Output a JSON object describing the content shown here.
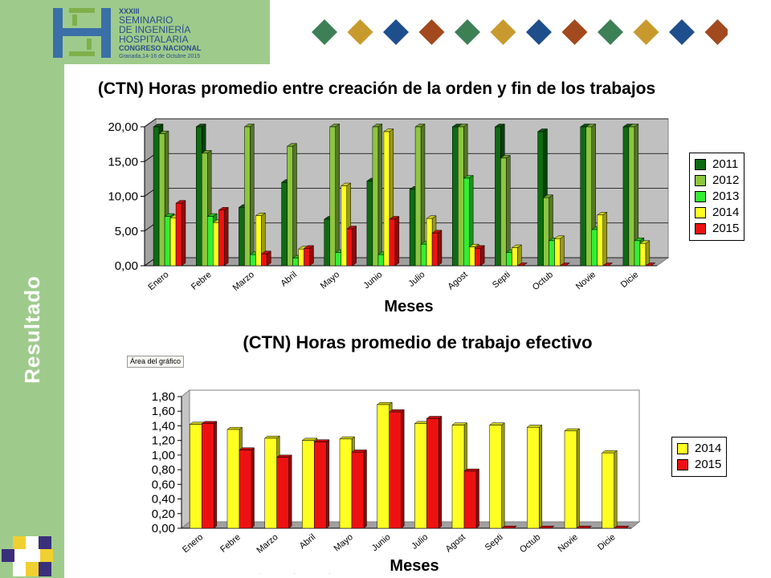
{
  "header": {
    "edition": "XXXIII",
    "line1": "SEMINARIO",
    "line2": "DE INGENIERÍA",
    "line3": "HOSPITALARIA",
    "line4": "CONGRESO NACIONAL",
    "line5": "Granada,14-16 de Octubre 2015",
    "logo_colors": [
      "#3a6fa8",
      "#7fb04a"
    ],
    "diamond_colors": [
      "#3e8056",
      "#c89a2e",
      "#1f4e8c",
      "#a24a1e",
      "#3e8056",
      "#c89a2e",
      "#1f4e8c",
      "#a24a1e",
      "#3e8056",
      "#c89a2e",
      "#1f4e8c",
      "#a24a1e"
    ]
  },
  "sidebar": {
    "label": "Resultado"
  },
  "tooltip": "Área del gráfico",
  "chart_data": [
    {
      "type": "bar",
      "title": "(CTN) Horas promedio entre creación de la orden y fin de los trabajos",
      "xlabel": "Meses",
      "ylabel": "",
      "ylim": [
        0,
        20
      ],
      "yticks": [
        "0,00",
        "5,00",
        "10,00",
        "15,00",
        "20,00"
      ],
      "ytick_values": [
        0,
        5,
        10,
        15,
        20
      ],
      "categories": [
        "Enero",
        "Febre",
        "Marzo",
        "Abril",
        "Mayo",
        "Junio",
        "Julio",
        "Agost",
        "Septi",
        "Octub",
        "Novie",
        "Dicie"
      ],
      "legend_position": "right",
      "grid": true,
      "series": [
        {
          "name": "2011",
          "color": "#0e6b12",
          "values": [
            20,
            20,
            8.4,
            12,
            6.7,
            12.2,
            11,
            20,
            20,
            19.3,
            20,
            20
          ]
        },
        {
          "name": "2012",
          "color": "#8cc63f",
          "values": [
            19,
            16.2,
            20,
            17.2,
            20,
            20,
            20,
            20,
            15.5,
            9.8,
            20,
            20
          ]
        },
        {
          "name": "2013",
          "color": "#33ee33",
          "values": [
            7.1,
            7.1,
            1.6,
            1.1,
            1.9,
            1.6,
            3.1,
            12.6,
            1.9,
            3.6,
            5.2,
            3.6
          ]
        },
        {
          "name": "2014",
          "color": "#ffff22",
          "values": [
            6.9,
            6.2,
            7.2,
            2.4,
            11.5,
            19.3,
            6.8,
            2.7,
            2.6,
            3.9,
            7.3,
            3.2
          ]
        },
        {
          "name": "2015",
          "color": "#ee1111",
          "values": [
            9,
            8,
            1.7,
            2.5,
            5.3,
            6.7,
            4.7,
            2.5,
            0,
            0,
            0,
            0
          ]
        }
      ]
    },
    {
      "type": "bar",
      "title": "(CTN) Horas promedio de trabajo efectivo",
      "xlabel": "Meses",
      "ylabel": "",
      "ylim": [
        0,
        1.8
      ],
      "yticks": [
        "0,00",
        "0,20",
        "0,40",
        "0,60",
        "0,80",
        "1,00",
        "1,20",
        "1,40",
        "1,60",
        "1,80"
      ],
      "ytick_values": [
        0,
        0.2,
        0.4,
        0.6,
        0.8,
        1.0,
        1.2,
        1.4,
        1.6,
        1.8
      ],
      "categories": [
        "Enero",
        "Febre",
        "Marzo",
        "Abril",
        "Mayo",
        "Junio",
        "Julio",
        "Agost",
        "Septi",
        "Octub",
        "Novie",
        "Dicie"
      ],
      "legend_position": "right",
      "grid": false,
      "series": [
        {
          "name": "2014",
          "color": "#ffff22",
          "values": [
            1.42,
            1.35,
            1.23,
            1.2,
            1.22,
            1.69,
            1.43,
            1.41,
            1.41,
            1.38,
            1.33,
            1.03
          ]
        },
        {
          "name": "2015",
          "color": "#ee1111",
          "values": [
            1.43,
            1.07,
            0.97,
            1.18,
            1.04,
            1.59,
            1.5,
            0.78,
            0,
            0,
            0,
            0
          ]
        }
      ]
    }
  ]
}
